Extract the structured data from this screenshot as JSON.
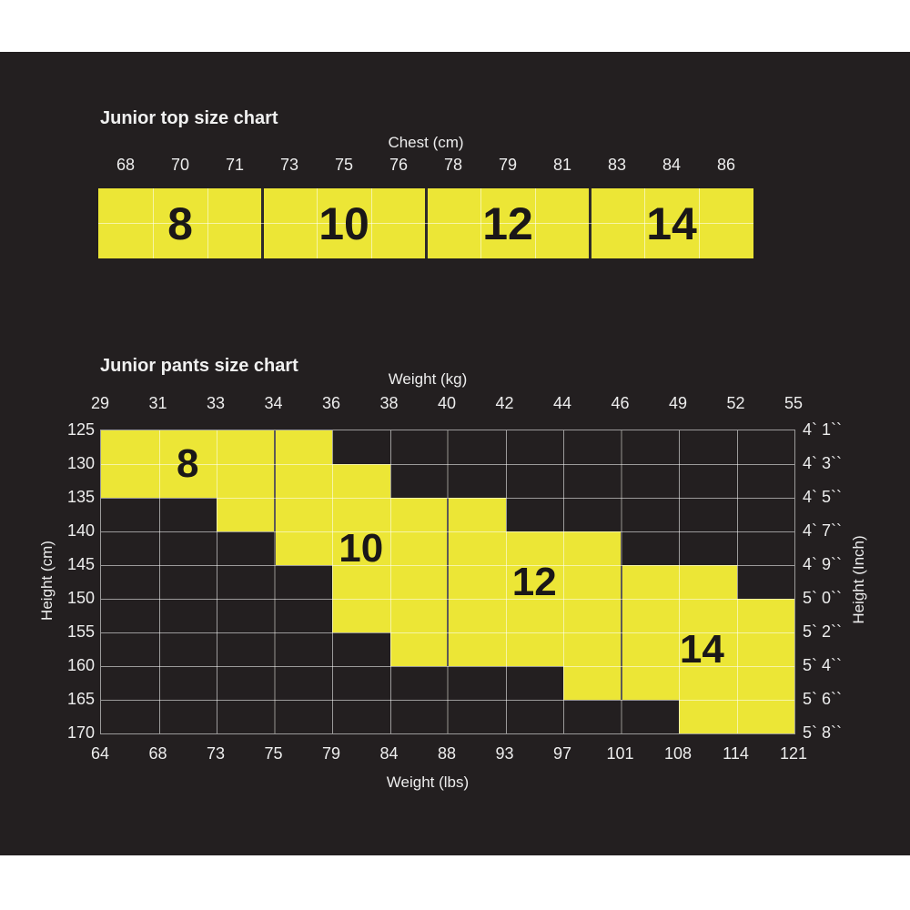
{
  "colors": {
    "page_bg": "#FFFFFF",
    "panel_bg": "#231F20",
    "yellow": "#ECE636",
    "text": "#EDEDED",
    "number_text": "#1A1718",
    "minor_line": "rgba(255,255,255,0.55)",
    "top_band_divider": "#2D2A2B",
    "grid_major_divider": "#5D5A58"
  },
  "chart_data": [
    {
      "type": "table",
      "title": "Junior top size chart",
      "x_axis_label": "Chest (cm)",
      "chest_cm_ticks": [
        "68",
        "70",
        "71",
        "73",
        "75",
        "76",
        "78",
        "79",
        "81",
        "83",
        "84",
        "86"
      ],
      "cells_per_size": 3,
      "sizes": [
        {
          "label": "8",
          "chest_cm_min": 68,
          "chest_cm_max": 73,
          "cell_start": 0,
          "cell_end": 2,
          "label_cell": 1
        },
        {
          "label": "10",
          "chest_cm_min": 73,
          "chest_cm_max": 78,
          "cell_start": 3,
          "cell_end": 5,
          "label_cell": 4
        },
        {
          "label": "12",
          "chest_cm_min": 78,
          "chest_cm_max": 83,
          "cell_start": 6,
          "cell_end": 8,
          "label_cell": 7
        },
        {
          "label": "14",
          "chest_cm_min": 83,
          "chest_cm_max": 86,
          "cell_start": 9,
          "cell_end": 11,
          "label_cell": 10
        }
      ]
    },
    {
      "type": "heatmap",
      "title": "Junior pants size chart",
      "top_axis_label": "Weight (kg)",
      "bottom_axis_label": "Weight (lbs)",
      "left_axis_label": "Height (cm)",
      "right_axis_label": "Height (Inch)",
      "weight_kg_ticks": [
        "29",
        "31",
        "33",
        "34",
        "36",
        "38",
        "40",
        "42",
        "44",
        "46",
        "49",
        "52",
        "55"
      ],
      "weight_lbs_ticks": [
        "64",
        "68",
        "73",
        "75",
        "79",
        "84",
        "88",
        "93",
        "97",
        "101",
        "108",
        "114",
        "121"
      ],
      "height_cm_ticks": [
        "125",
        "130",
        "135",
        "140",
        "145",
        "150",
        "155",
        "160",
        "165",
        "170"
      ],
      "height_inch_ticks": [
        "4` 1``",
        "4` 3``",
        "4` 5``",
        "4` 7``",
        "4` 9``",
        "5` 0``",
        "5` 2``",
        "5` 4``",
        "5` 6``",
        "5` 8``"
      ],
      "major_col_boundaries": [
        3,
        6,
        9
      ],
      "rows_yellow_col_range": [
        [
          0,
          3
        ],
        [
          0,
          4
        ],
        [
          2,
          6
        ],
        [
          3,
          8
        ],
        [
          4,
          10
        ],
        [
          4,
          11
        ],
        [
          5,
          11
        ],
        [
          8,
          11
        ],
        [
          10,
          11
        ]
      ],
      "size_labels": [
        {
          "label": "8",
          "cx": 1.5,
          "cy": 1.0
        },
        {
          "label": "10",
          "cx": 4.5,
          "cy": 3.5
        },
        {
          "label": "12",
          "cx": 7.5,
          "cy": 4.5
        },
        {
          "label": "14",
          "cx": 10.4,
          "cy": 6.5
        }
      ]
    }
  ]
}
